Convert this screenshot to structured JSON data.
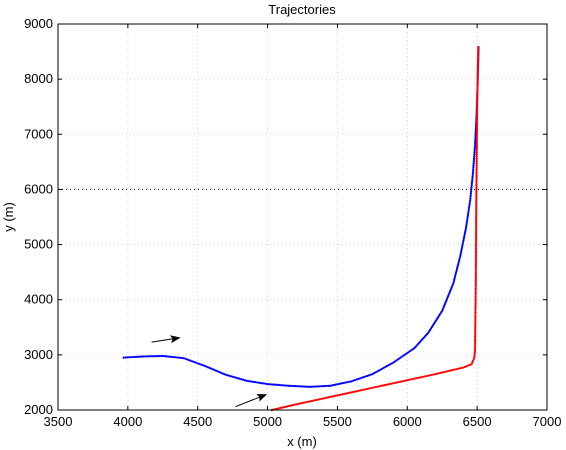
{
  "chart_data": {
    "type": "scatter",
    "title": "Trajectories",
    "xlabel": "x (m)",
    "ylabel": "y (m)",
    "xlim": [
      3500,
      7000
    ],
    "ylim": [
      2000,
      9000
    ],
    "xticks": [
      3500,
      4000,
      4500,
      5000,
      5500,
      6000,
      6500,
      7000
    ],
    "yticks": [
      2000,
      3000,
      4000,
      5000,
      6000,
      7000,
      8000,
      9000
    ],
    "xtick_labels": [
      "3500",
      "4000",
      "4500",
      "5000",
      "5500",
      "6000",
      "6500",
      "7000"
    ],
    "ytick_labels": [
      "2000",
      "3000",
      "4000",
      "5000",
      "6000",
      "7000",
      "8000",
      "9000"
    ],
    "grid": true,
    "reference_line": {
      "y": 6000,
      "style": "dotted",
      "color": "#000000"
    },
    "series": [
      {
        "color": "#0000ff",
        "style": "dots",
        "points": [
          [
            3970,
            2950
          ],
          [
            4100,
            2970
          ],
          [
            4250,
            2980
          ],
          [
            4400,
            2940
          ],
          [
            4550,
            2800
          ],
          [
            4700,
            2640
          ],
          [
            4850,
            2530
          ],
          [
            5000,
            2470
          ],
          [
            5150,
            2440
          ],
          [
            5300,
            2420
          ],
          [
            5450,
            2440
          ],
          [
            5600,
            2520
          ],
          [
            5750,
            2650
          ],
          [
            5900,
            2860
          ],
          [
            6050,
            3120
          ],
          [
            6150,
            3400
          ],
          [
            6250,
            3800
          ],
          [
            6330,
            4300
          ],
          [
            6380,
            4800
          ],
          [
            6420,
            5300
          ],
          [
            6450,
            5800
          ],
          [
            6470,
            6300
          ],
          [
            6485,
            6800
          ],
          [
            6495,
            7300
          ],
          [
            6502,
            7800
          ],
          [
            6508,
            8300
          ],
          [
            6510,
            8580
          ]
        ]
      },
      {
        "color": "#ff0000",
        "style": "dots",
        "points": [
          [
            5030,
            2000
          ],
          [
            5200,
            2100
          ],
          [
            5400,
            2210
          ],
          [
            5600,
            2320
          ],
          [
            5800,
            2430
          ],
          [
            6000,
            2540
          ],
          [
            6200,
            2650
          ],
          [
            6400,
            2770
          ],
          [
            6460,
            2830
          ],
          [
            6480,
            2950
          ],
          [
            6485,
            3100
          ],
          [
            6487,
            3600
          ],
          [
            6490,
            4200
          ],
          [
            6492,
            5000
          ],
          [
            6494,
            5800
          ],
          [
            6497,
            6600
          ],
          [
            6500,
            7400
          ],
          [
            6504,
            8100
          ],
          [
            6508,
            8580
          ]
        ]
      }
    ],
    "annotations": [
      {
        "type": "arrow",
        "from": [
          4170,
          3230
        ],
        "to": [
          4370,
          3310
        ]
      },
      {
        "type": "arrow",
        "from": [
          4770,
          2060
        ],
        "to": [
          4990,
          2280
        ]
      }
    ]
  }
}
